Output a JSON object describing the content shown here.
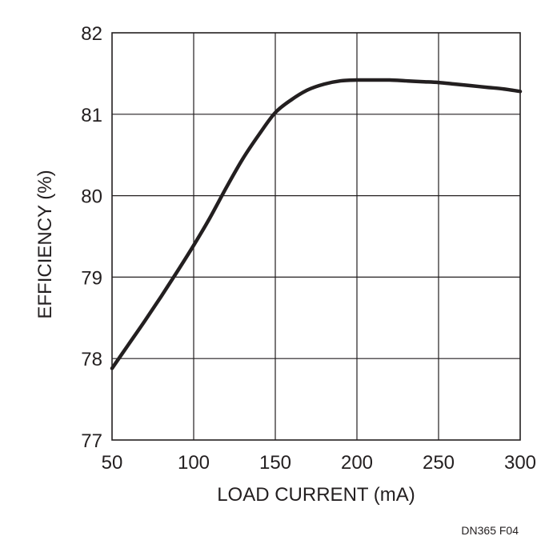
{
  "chart_data": {
    "type": "line",
    "title": "",
    "xlabel": "LOAD CURRENT (mA)",
    "ylabel": "EFFICIENCY (%)",
    "xlim": [
      50,
      300
    ],
    "ylim": [
      77,
      82
    ],
    "xticks": [
      50,
      100,
      150,
      200,
      250,
      300
    ],
    "yticks": [
      77,
      78,
      79,
      80,
      81,
      82
    ],
    "grid": true,
    "legend": "none",
    "figure_id": "DN365 F04",
    "colors": {
      "line": "#231f20",
      "grid": "#231f20",
      "text": "#231f20"
    },
    "series": [
      {
        "x": [
          50,
          60,
          70,
          80,
          90,
          100,
          110,
          120,
          130,
          140,
          150,
          160,
          170,
          180,
          190,
          200,
          210,
          220,
          230,
          240,
          250,
          260,
          270,
          280,
          290,
          300
        ],
        "y": [
          77.88,
          78.17,
          78.46,
          78.76,
          79.07,
          79.39,
          79.73,
          80.1,
          80.45,
          80.75,
          81.02,
          81.18,
          81.3,
          81.37,
          81.41,
          81.42,
          81.42,
          81.42,
          81.41,
          81.4,
          81.39,
          81.37,
          81.35,
          81.33,
          81.31,
          81.28
        ]
      }
    ]
  }
}
